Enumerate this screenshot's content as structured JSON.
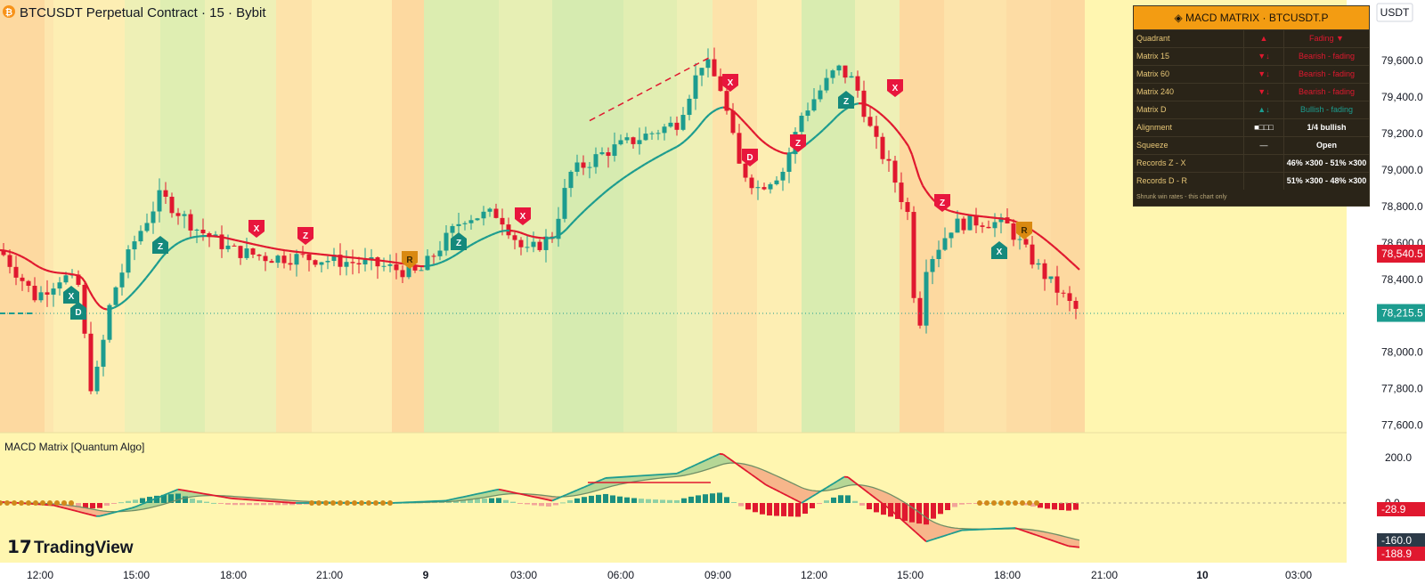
{
  "header": {
    "title": "BTCUSDT Perpetual Contract · 15 · Bybit",
    "symbol_icon": "bitcoin-icon"
  },
  "price_axis": {
    "currency": "USDT",
    "ticks": [
      "79,600.0",
      "79,400.0",
      "79,200.0",
      "79,000.0",
      "78,800.0",
      "78,600.0",
      "78,400.0",
      "78,000.0",
      "77,800.0",
      "77,600.0"
    ],
    "tick_values": [
      79600,
      79400,
      79200,
      79000,
      78800,
      78600,
      78400,
      78000,
      77800,
      77600
    ],
    "badge_red": "78,540.5",
    "badge_red_value": 78540.5,
    "badge_teal": "78,215.5",
    "badge_teal_value": 78215.5,
    "colors": {
      "red": "#e0182f",
      "teal": "#1c9c8f"
    }
  },
  "indicator": {
    "name": "MACD Matrix [Quantum Algo]",
    "ticks": [
      "200.0",
      "0.0"
    ],
    "tick_values": [
      200,
      0
    ],
    "badges": [
      {
        "text": "-28.9",
        "value": -28.9,
        "color": "#e0182f"
      },
      {
        "text": "-160.0",
        "value": -160.0,
        "color": "#2c3a48"
      },
      {
        "text": "-188.9",
        "value": -188.9,
        "color": "#e0182f"
      }
    ]
  },
  "time_axis": {
    "labels": [
      {
        "text": "12:00",
        "bold": false
      },
      {
        "text": "15:00",
        "bold": false
      },
      {
        "text": "18:00",
        "bold": false
      },
      {
        "text": "21:00",
        "bold": false
      },
      {
        "text": "9",
        "bold": true
      },
      {
        "text": "03:00",
        "bold": false
      },
      {
        "text": "06:00",
        "bold": false
      },
      {
        "text": "09:00",
        "bold": false
      },
      {
        "text": "12:00",
        "bold": false
      },
      {
        "text": "15:00",
        "bold": false
      },
      {
        "text": "18:00",
        "bold": false
      },
      {
        "text": "21:00",
        "bold": false
      },
      {
        "text": "10",
        "bold": true
      },
      {
        "text": "03:00",
        "bold": false
      }
    ]
  },
  "logo": {
    "text": "TradingView"
  },
  "markers": [
    {
      "letter": "Z",
      "kind": "bull"
    },
    {
      "letter": "X",
      "kind": "bull"
    },
    {
      "letter": "D",
      "kind": "bull"
    },
    {
      "letter": "X",
      "kind": "bear"
    },
    {
      "letter": "Z",
      "kind": "bear"
    },
    {
      "letter": "R",
      "kind": "neutral"
    },
    {
      "letter": "Z",
      "kind": "bull"
    },
    {
      "letter": "X",
      "kind": "bear"
    },
    {
      "letter": "X",
      "kind": "bear"
    },
    {
      "letter": "D",
      "kind": "bear"
    },
    {
      "letter": "Z",
      "kind": "bear"
    },
    {
      "letter": "Z",
      "kind": "bull"
    },
    {
      "letter": "X",
      "kind": "bear"
    },
    {
      "letter": "Z",
      "kind": "bear"
    },
    {
      "letter": "X",
      "kind": "bull"
    },
    {
      "letter": "R",
      "kind": "neutral"
    }
  ],
  "matrix_panel": {
    "title": "◈ MACD MATRIX · BTCUSDT.P",
    "rows": [
      {
        "label": "Quadrant",
        "icon": "▲",
        "icon_color": "#e0182f",
        "value": "Fading ▼",
        "value_color": "#e0182f"
      },
      {
        "label": "Matrix 15",
        "icon": "▼↓",
        "icon_color": "#e0182f",
        "value": "Bearish - fading",
        "value_color": "#e0182f"
      },
      {
        "label": "Matrix 60",
        "icon": "▼↓",
        "icon_color": "#e0182f",
        "value": "Bearish - fading",
        "value_color": "#e0182f"
      },
      {
        "label": "Matrix 240",
        "icon": "▼↓",
        "icon_color": "#e0182f",
        "value": "Bearish - fading",
        "value_color": "#e0182f"
      },
      {
        "label": "Matrix D",
        "icon": "▲↓",
        "icon_color": "#1c9c8f",
        "value": "Bullish - fading",
        "value_color": "#1c9c8f"
      },
      {
        "label": "Alignment",
        "icon": "■□□□",
        "icon_color": "#ffffff",
        "value": "1/4 bullish",
        "value_color": "#ffffff"
      },
      {
        "label": "Squeeze",
        "icon": "—",
        "icon_color": "#ffffff",
        "value": "Open",
        "value_color": "#ffffff"
      },
      {
        "label": "Records Z - X",
        "icon": "",
        "icon_color": "#ffffff",
        "value": "46% ×300 - 51% ×300",
        "value_color": "#ffffff"
      },
      {
        "label": "Records D - R",
        "icon": "",
        "icon_color": "#ffffff",
        "value": "51% ×300 - 48% ×300",
        "value_color": "#ffffff"
      }
    ],
    "footer": "Shrunk win rates - this chart only",
    "colors": {
      "header": "#f39c12",
      "body": "#2a2418"
    }
  }
}
